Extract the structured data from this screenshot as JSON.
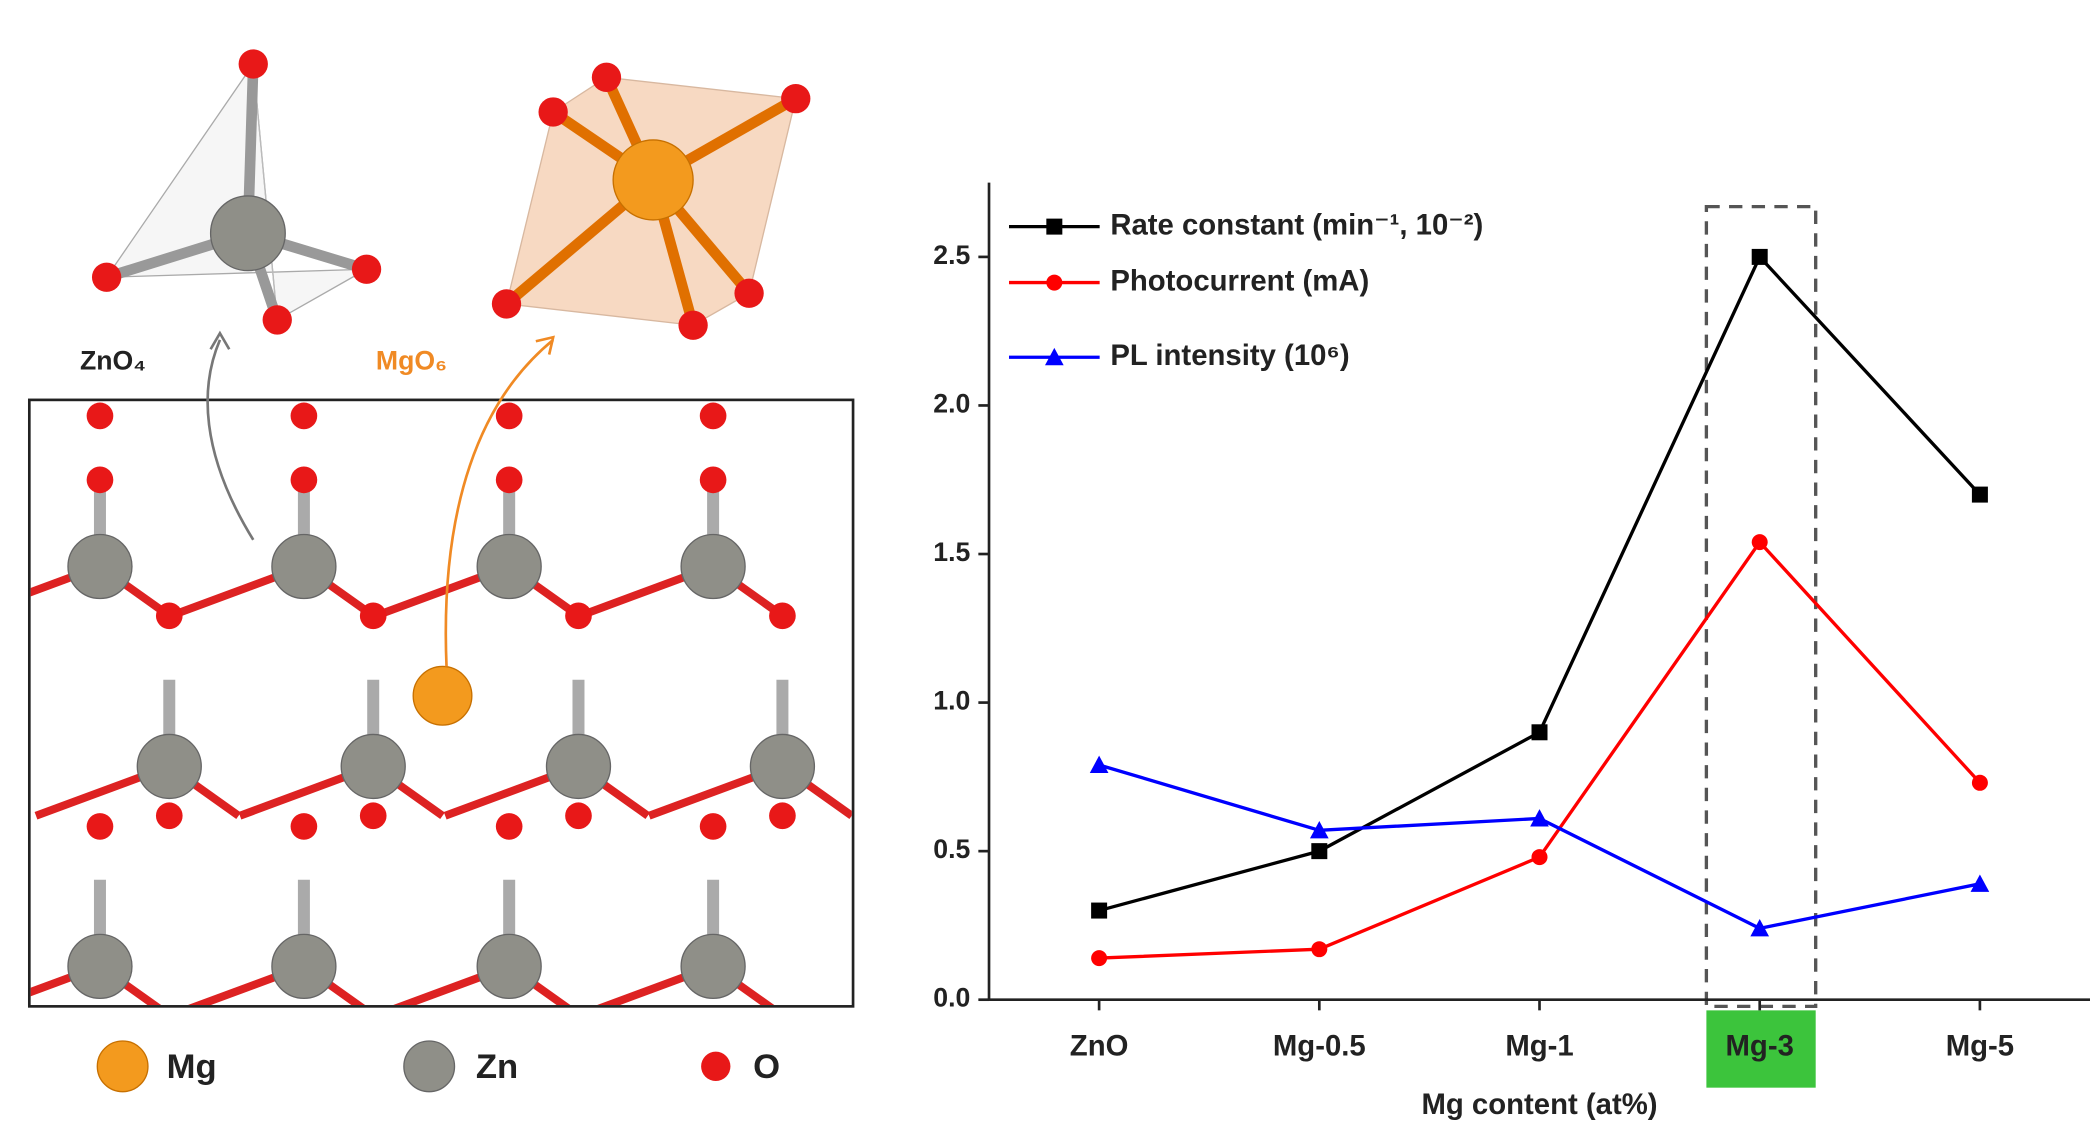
{
  "structure": {
    "zno4_label": "ZnO₄",
    "mgo6_label": "MgO₆",
    "legend": [
      "Mg",
      "Zn",
      "O"
    ]
  },
  "chart_data": {
    "type": "line",
    "xlabel": "Mg content (at%)",
    "categories": [
      "ZnO",
      "Mg-0.5",
      "Mg-1",
      "Mg-3",
      "Mg-5"
    ],
    "series": [
      {
        "name": "Rate constant (min⁻¹, 10⁻²)",
        "color": "#000000",
        "marker": "square",
        "values": [
          0.3,
          0.5,
          0.9,
          2.5,
          1.7
        ]
      },
      {
        "name": "Photocurrent (mA)",
        "color": "#ff0000",
        "marker": "circle",
        "values": [
          0.14,
          0.17,
          0.48,
          1.54,
          0.73
        ]
      },
      {
        "name": "PL intensity (10⁶)",
        "color": "#0000ff",
        "marker": "triangle",
        "values": [
          0.79,
          0.57,
          0.61,
          0.24,
          0.39
        ]
      }
    ],
    "ylim": [
      0,
      2.75
    ],
    "yticks": [
      {
        "value": 0,
        "label": "0.0"
      },
      0.5,
      {
        "value": 1,
        "label": "1.0"
      },
      1.5,
      {
        "value": 2,
        "label": "2.0"
      },
      2.5
    ],
    "legend_position": "upper left"
  }
}
